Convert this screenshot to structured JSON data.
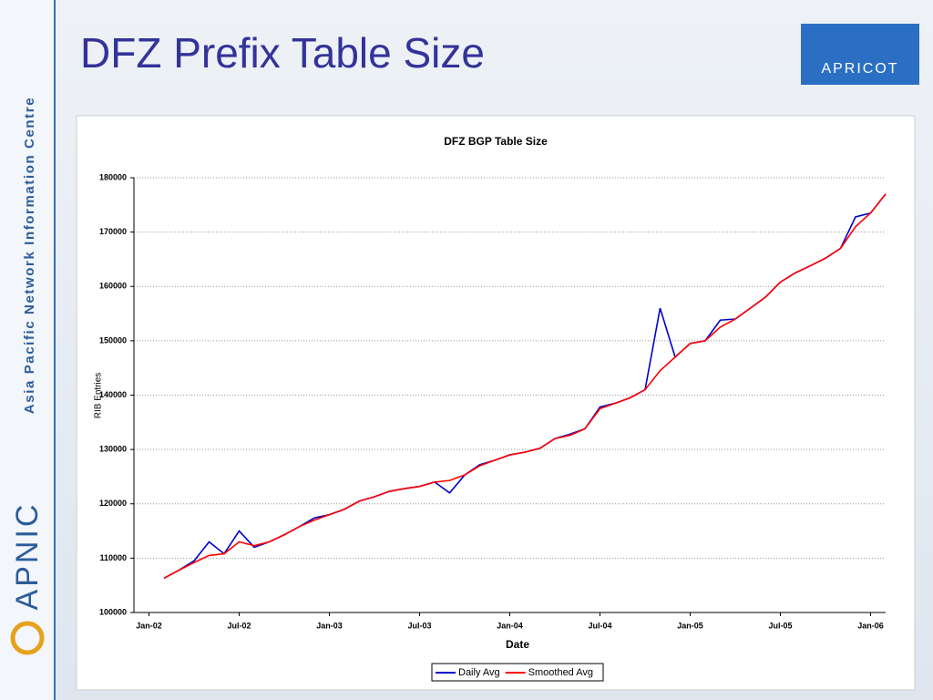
{
  "slide": {
    "title": "DFZ Prefix Table Size",
    "sidebar": "Asia Pacific Network Information Centre",
    "brand": "APNIC",
    "logo": "APRICOT"
  },
  "chart_data": {
    "type": "line",
    "title": "DFZ BGP Table Size",
    "xlabel": "Date",
    "ylabel": "RIB Entries",
    "x": [
      "2002-02",
      "2002-03",
      "2002-04",
      "2002-05",
      "2002-06",
      "2002-07",
      "2002-08",
      "2002-09",
      "2002-10",
      "2002-11",
      "2002-12",
      "2003-01",
      "2003-02",
      "2003-03",
      "2003-04",
      "2003-05",
      "2003-06",
      "2003-07",
      "2003-08",
      "2003-09",
      "2003-10",
      "2003-11",
      "2003-12",
      "2004-01",
      "2004-02",
      "2004-03",
      "2004-04",
      "2004-05",
      "2004-06",
      "2004-07",
      "2004-08",
      "2004-09",
      "2004-10",
      "2004-11",
      "2004-12",
      "2005-01",
      "2005-02",
      "2005-03",
      "2005-04",
      "2005-05",
      "2005-06",
      "2005-07",
      "2005-08",
      "2005-09",
      "2005-10",
      "2005-11",
      "2005-12",
      "2006-01",
      "2006-02"
    ],
    "series": [
      {
        "name": "Daily Avg",
        "color": "#0000cc",
        "values": [
          106300,
          107800,
          109500,
          113000,
          110800,
          115000,
          112000,
          113000,
          114300,
          115800,
          117400,
          118000,
          119000,
          120500,
          121300,
          122300,
          122800,
          123200,
          124000,
          122000,
          125300,
          127200,
          128000,
          129000,
          129500,
          130200,
          132000,
          132800,
          133800,
          137800,
          138500,
          139500,
          141000,
          156000,
          147000,
          149500,
          150000,
          153800,
          154000,
          156000,
          158000,
          160800,
          162500,
          163800,
          165200,
          167000,
          172800,
          173500,
          177000
        ]
      },
      {
        "name": "Smoothed Avg",
        "color": "#ff0000",
        "values": [
          106300,
          107800,
          109200,
          110500,
          110800,
          113000,
          112300,
          113000,
          114300,
          115800,
          117000,
          118000,
          119000,
          120500,
          121300,
          122300,
          122800,
          123200,
          124000,
          124300,
          125300,
          127000,
          128000,
          129000,
          129500,
          130200,
          132000,
          132600,
          133800,
          137500,
          138500,
          139500,
          141000,
          144500,
          147000,
          149500,
          150000,
          152500,
          154000,
          156000,
          158000,
          160800,
          162500,
          163800,
          165200,
          167000,
          171000,
          173500,
          177000
        ]
      }
    ],
    "xlim": [
      "2001-12",
      "2006-02"
    ],
    "xticks": [
      {
        "value": "2002-01",
        "label": "Jan-02"
      },
      {
        "value": "2002-07",
        "label": "Jul-02"
      },
      {
        "value": "2003-01",
        "label": "Jan-03"
      },
      {
        "value": "2003-07",
        "label": "Jul-03"
      },
      {
        "value": "2004-01",
        "label": "Jan-04"
      },
      {
        "value": "2004-07",
        "label": "Jul-04"
      },
      {
        "value": "2005-01",
        "label": "Jan-05"
      },
      {
        "value": "2005-07",
        "label": "Jul-05"
      },
      {
        "value": "2006-01",
        "label": "Jan-06"
      }
    ],
    "ylim": [
      100000,
      180000
    ],
    "yticks": [
      100000,
      110000,
      120000,
      130000,
      140000,
      150000,
      160000,
      170000,
      180000
    ],
    "grid": true,
    "legend": "bottom"
  }
}
